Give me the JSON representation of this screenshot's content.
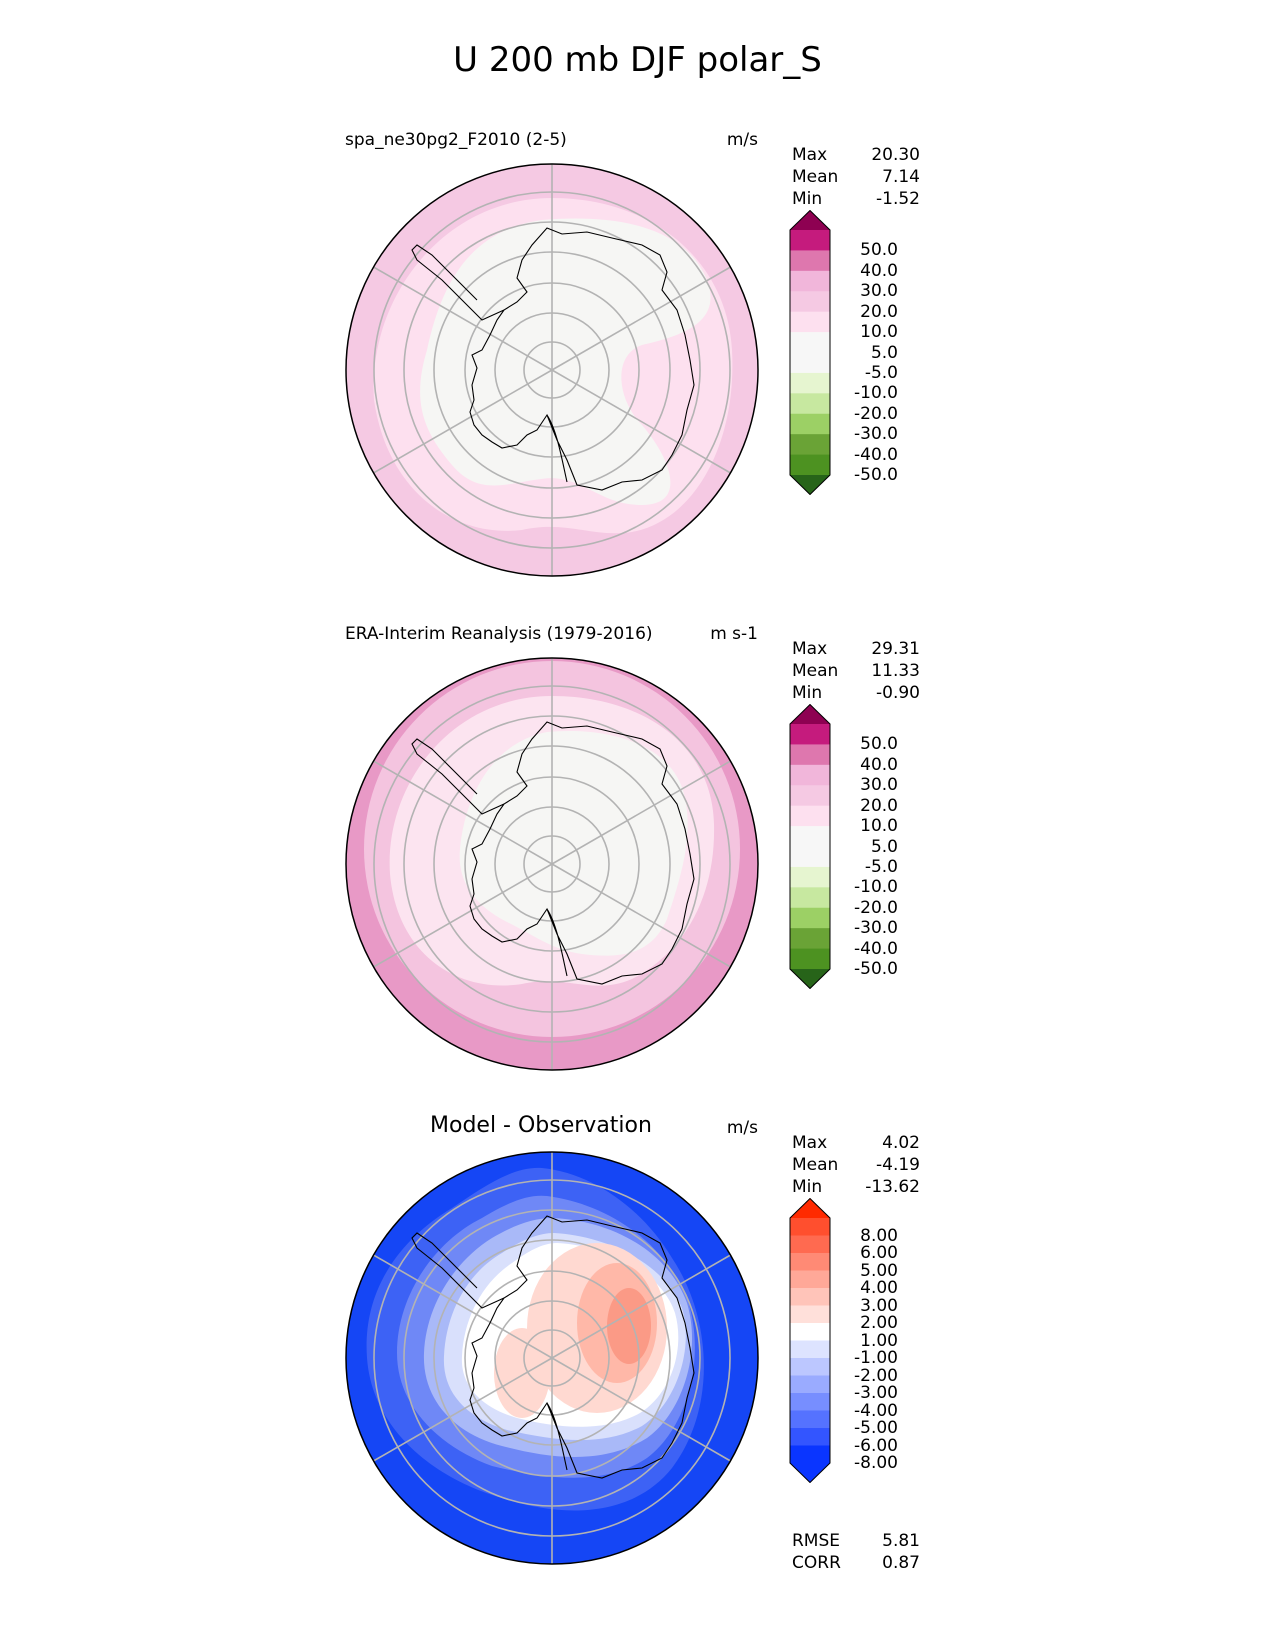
{
  "title": "U 200 mb DJF polar_S",
  "panels": [
    {
      "id": "model",
      "label": "spa_ne30pg2_F2010 (2-5)",
      "units": "m/s",
      "stats": {
        "max_label": "Max",
        "max": "20.30",
        "mean_label": "Mean",
        "mean": "7.14",
        "min_label": "Min",
        "min": "-1.52"
      },
      "colorbar": {
        "levels": [
          "50.0",
          "40.0",
          "30.0",
          "20.0",
          "10.0",
          "5.0",
          "-5.0",
          "-10.0",
          "-20.0",
          "-30.0",
          "-40.0",
          "-50.0"
        ],
        "colors": [
          "#8e0152",
          "#c51b7d",
          "#de77ae",
          "#f1b6da",
          "#f5c9e3",
          "#fde0ef",
          "#f7f7f7",
          "#f7f7f7",
          "#e6f5d0",
          "#c7e8a0",
          "#9cd065",
          "#6aa336",
          "#4d9221",
          "#276419"
        ]
      },
      "field_colors": {
        "outer": "#f5c9e3",
        "ring": "#fde0ef",
        "core": "#f6f6f4"
      }
    },
    {
      "id": "obs",
      "label": "ERA-Interim Reanalysis (1979-2016)",
      "units": "m s-1",
      "stats": {
        "max_label": "Max",
        "max": "29.31",
        "mean_label": "Mean",
        "mean": "11.33",
        "min_label": "Min",
        "min": "-0.90"
      },
      "colorbar": {
        "levels": [
          "50.0",
          "40.0",
          "30.0",
          "20.0",
          "10.0",
          "5.0",
          "-5.0",
          "-10.0",
          "-20.0",
          "-30.0",
          "-40.0",
          "-50.0"
        ],
        "colors": [
          "#8e0152",
          "#c51b7d",
          "#de77ae",
          "#f1b6da",
          "#f5c9e3",
          "#fde0ef",
          "#f7f7f7",
          "#f7f7f7",
          "#e6f5d0",
          "#c7e8a0",
          "#9cd065",
          "#6aa336",
          "#4d9221",
          "#276419"
        ]
      },
      "field_colors": {
        "outer": "#e899c6",
        "mid": "#f4c4df",
        "ring": "#fce4f0",
        "core": "#f6f6f4"
      }
    },
    {
      "id": "diff",
      "label": "Model - Observation",
      "units": "m/s",
      "stats": {
        "max_label": "Max",
        "max": "4.02",
        "mean_label": "Mean",
        "mean": "-4.19",
        "min_label": "Min",
        "min": "-13.62"
      },
      "metrics": {
        "rmse_label": "RMSE",
        "rmse": "5.81",
        "corr_label": "CORR",
        "corr": "0.87"
      },
      "colorbar": {
        "levels": [
          "8.00",
          "6.00",
          "5.00",
          "4.00",
          "3.00",
          "2.00",
          "1.00",
          "-1.00",
          "-2.00",
          "-3.00",
          "-4.00",
          "-5.00",
          "-6.00",
          "-8.00"
        ],
        "colors": [
          "#ff2a00",
          "#ff4f2e",
          "#ff6a50",
          "#ff8a75",
          "#ffa898",
          "#ffc4b9",
          "#ffe0da",
          "#ffffff",
          "#dde3ff",
          "#bcc7ff",
          "#9aabff",
          "#778eff",
          "#5572ff",
          "#3355ff",
          "#0a35ff",
          "#0a35ff"
        ]
      },
      "field_colors": {
        "outer": "#1546f5",
        "band1": "#3d62f5",
        "band2": "#6f88f6",
        "band3": "#a9b9f8",
        "band4": "#d9e0fc",
        "core": "#ffffff",
        "pos1": "#ffd9d1",
        "pos2": "#ffb8a8",
        "pos3": "#fb9a86"
      }
    }
  ]
}
